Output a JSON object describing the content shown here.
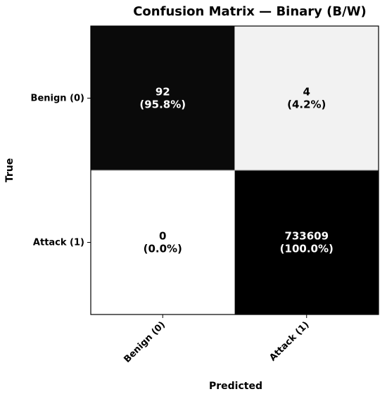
{
  "chart_data": {
    "type": "heatmap",
    "title": "Confusion Matrix — Binary (B/W)",
    "xlabel": "Predicted",
    "ylabel": "True",
    "x_tick_labels": [
      "Benign (0)",
      "Attack (1)"
    ],
    "y_tick_labels": [
      "Benign (0)",
      "Attack (1)"
    ],
    "cells": [
      [
        {
          "count": "92",
          "percent": "(95.8%)",
          "fraction": 0.958,
          "shade": "#0a0a0a",
          "text_color": "#ffffff"
        },
        {
          "count": "4",
          "percent": "(4.2%)",
          "fraction": 0.042,
          "shade": "#f2f2f2",
          "text_color": "#000000"
        }
      ],
      [
        {
          "count": "0",
          "percent": "(0.0%)",
          "fraction": 0.0,
          "shade": "#ffffff",
          "text_color": "#000000"
        },
        {
          "count": "733609",
          "percent": "(100.0%)",
          "fraction": 1.0,
          "shade": "#000000",
          "text_color": "#ffffff"
        }
      ]
    ],
    "colormap": "Greys",
    "grid": false
  }
}
